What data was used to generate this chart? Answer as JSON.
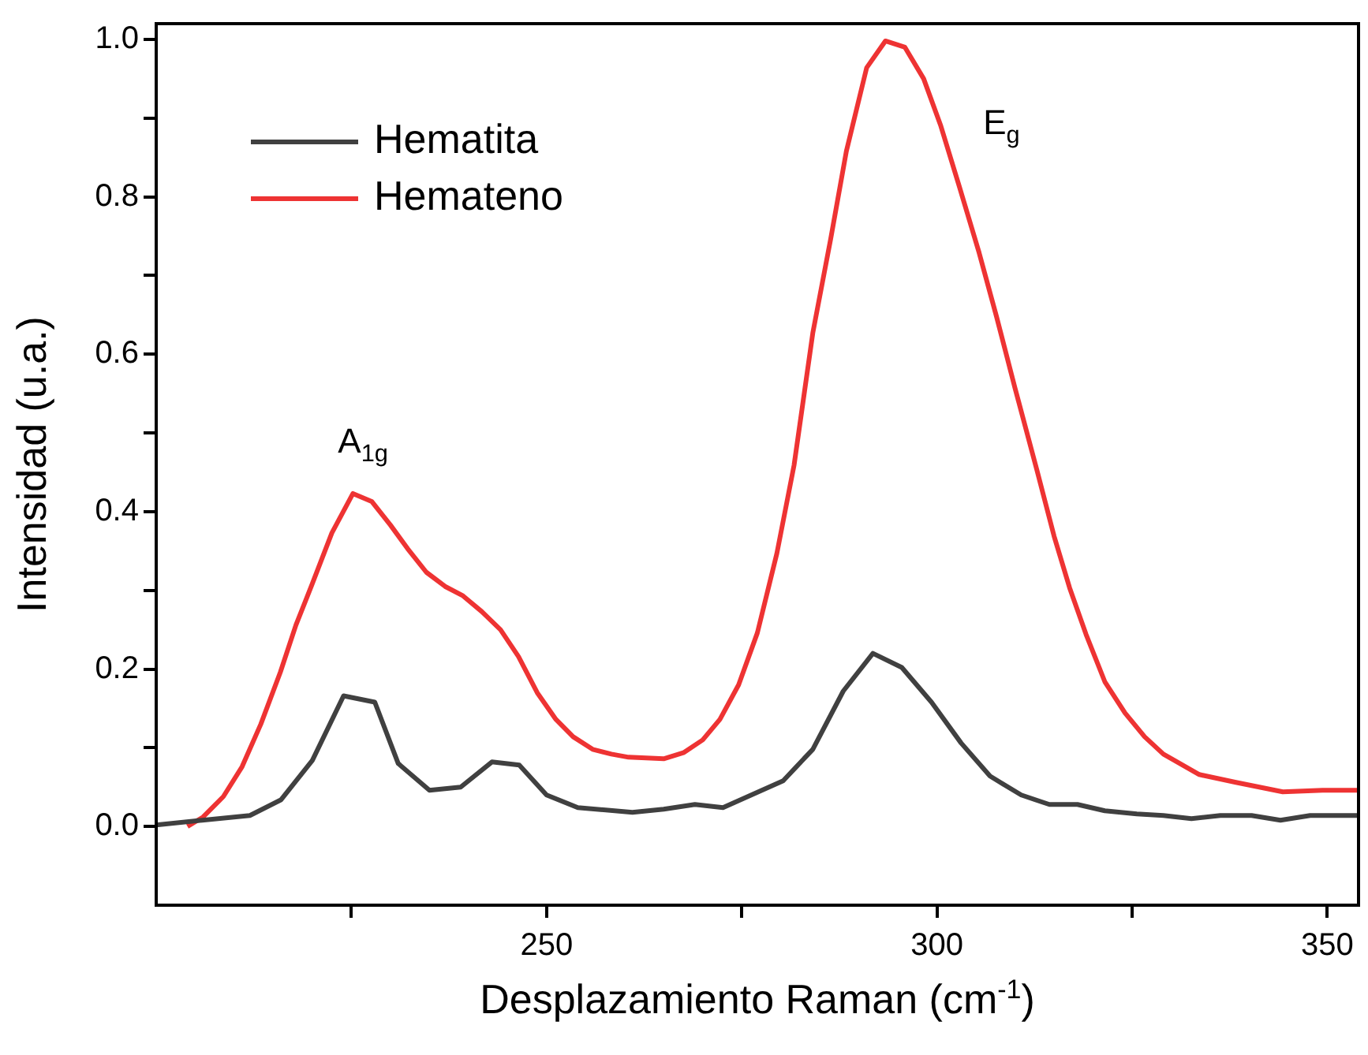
{
  "chart_data": {
    "type": "line",
    "xlabel": "Desplazamiento Raman (cm$^{-1}$)",
    "ylabel": "Intensidad (u.a.)",
    "xlim": [
      200,
      354
    ],
    "ylim": [
      -0.1,
      1.02
    ],
    "xticks": [
      {
        "value": 225,
        "label": null
      },
      250,
      {
        "value": 275,
        "label": null
      },
      300,
      {
        "value": 325,
        "label": null
      },
      350
    ],
    "yticks": [
      {
        "value": 0,
        "label": "0.0"
      },
      {
        "value": 0.1,
        "label": null
      },
      {
        "value": 0.2,
        "label": "0.2"
      },
      {
        "value": 0.3,
        "label": null
      },
      {
        "value": 0.4,
        "label": "0.4"
      },
      {
        "value": 0.5,
        "label": null
      },
      {
        "value": 0.6,
        "label": "0.6"
      },
      {
        "value": 0.7,
        "label": null
      },
      {
        "value": 0.8,
        "label": "0.8"
      },
      {
        "value": 0.9,
        "label": null
      },
      {
        "value": 1,
        "label": "1.0"
      }
    ],
    "grid": false,
    "legend": "top left",
    "marker": "none",
    "line_style": "solid",
    "annotations": [
      "A$_{1g}$",
      "E$_{g}$"
    ],
    "series": [
      {
        "name": "Hematita",
        "color": "#404040",
        "x": [
          200,
          212,
          216,
          220,
          224,
          228,
          231,
          235,
          239,
          243,
          246.5,
          250,
          254,
          261,
          265,
          269,
          272.6,
          280.3,
          284.1,
          288,
          291.8,
          295.5,
          299.3,
          303.1,
          306.8,
          310.8,
          314.4,
          318,
          321.5,
          325.6,
          329,
          332.6,
          336.3,
          340.3,
          344,
          347.8,
          354
        ],
        "values": [
          0.002,
          0.014,
          0.034,
          0.084,
          0.166,
          0.158,
          0.08,
          0.046,
          0.05,
          0.082,
          0.078,
          0.04,
          0.024,
          0.018,
          0.022,
          0.028,
          0.024,
          0.058,
          0.098,
          0.172,
          0.22,
          0.202,
          0.158,
          0.106,
          0.064,
          0.04,
          0.028,
          0.028,
          0.02,
          0.016,
          0.014,
          0.01,
          0.014,
          0.014,
          0.008,
          0.014,
          0.014
        ]
      },
      {
        "name": "Hemateno",
        "color": "#ee3333",
        "x": [
          204,
          206,
          208.6,
          211,
          213.4,
          215.9,
          217.9,
          219.9,
          222.5,
          225.2,
          227.6,
          230,
          232.2,
          234.6,
          237,
          239.3,
          241.7,
          244.1,
          246.4,
          248.8,
          251.2,
          253.4,
          255.9,
          258.3,
          260.5,
          265,
          267.6,
          270,
          272.2,
          274.6,
          277,
          279.5,
          281.7,
          284.1,
          286.4,
          288.4,
          291,
          293.4,
          295.9,
          298.3,
          300.5,
          302.9,
          305.4,
          307.6,
          310,
          312.8,
          315,
          317,
          319.1,
          321.5,
          324.1,
          326.6,
          329,
          333.6,
          338.3,
          344.3,
          349.4,
          354
        ],
        "values": [
          0.0,
          0.012,
          0.038,
          0.076,
          0.13,
          0.196,
          0.256,
          0.306,
          0.373,
          0.423,
          0.413,
          0.383,
          0.353,
          0.323,
          0.305,
          0.293,
          0.273,
          0.25,
          0.216,
          0.17,
          0.136,
          0.114,
          0.098,
          0.092,
          0.088,
          0.086,
          0.094,
          0.11,
          0.136,
          0.18,
          0.246,
          0.347,
          0.459,
          0.627,
          0.747,
          0.858,
          0.964,
          0.998,
          0.99,
          0.95,
          0.89,
          0.812,
          0.729,
          0.649,
          0.557,
          0.453,
          0.369,
          0.303,
          0.244,
          0.184,
          0.144,
          0.114,
          0.092,
          0.066,
          0.056,
          0.044,
          0.046,
          0.046
        ]
      }
    ]
  }
}
